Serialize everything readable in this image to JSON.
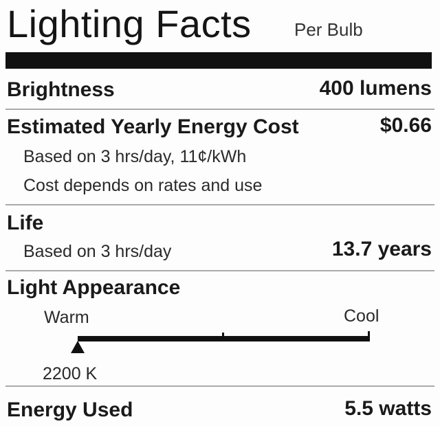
{
  "header": {
    "title": "Lighting Facts",
    "subtitle": "Per Bulb"
  },
  "brightness": {
    "label": "Brightness",
    "value": "400 lumens"
  },
  "energy_cost": {
    "label": "Estimated Yearly Energy Cost",
    "value": "$0.66",
    "note1": "Based on 3 hrs/day, 11¢/kWh",
    "note2": "Cost depends on rates and use"
  },
  "life": {
    "label": "Life",
    "note": "Based on 3 hrs/day",
    "value": "13.7 years"
  },
  "light_appearance": {
    "label": "Light Appearance",
    "warm_label": "Warm",
    "cool_label": "Cool",
    "value": "2200 K",
    "indicator_fraction": 0.0
  },
  "energy_used": {
    "label": "Energy Used",
    "value": "5.5 watts"
  }
}
